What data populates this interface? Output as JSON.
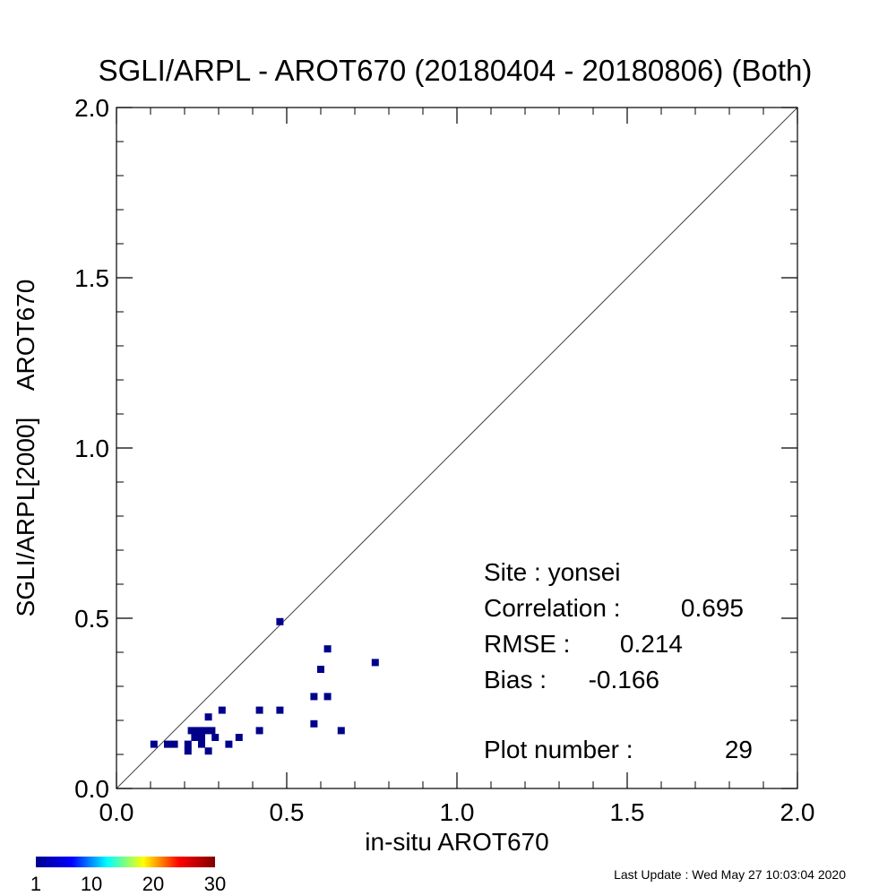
{
  "chart_data": {
    "type": "scatter",
    "title": "SGLI/ARPL - AROT670 (20180404 - 20180806) (Both)",
    "xlabel": "in-situ AROT670",
    "ylabel": "SGLI/ARPL[2000]    AROT670",
    "xlim": [
      0.0,
      2.0
    ],
    "ylim": [
      0.0,
      2.0
    ],
    "xticks": [
      "0.0",
      "0.5",
      "1.0",
      "1.5",
      "2.0"
    ],
    "yticks": [
      "0.0",
      "0.5",
      "1.0",
      "1.5",
      "2.0"
    ],
    "xtick_values": [
      0.0,
      0.5,
      1.0,
      1.5,
      2.0
    ],
    "ytick_values": [
      0.0,
      0.5,
      1.0,
      1.5,
      2.0
    ],
    "grid": false,
    "one_to_one_line": true,
    "point_color": "#00008b",
    "points": [
      {
        "x": 0.11,
        "y": 0.13
      },
      {
        "x": 0.15,
        "y": 0.13
      },
      {
        "x": 0.17,
        "y": 0.13
      },
      {
        "x": 0.21,
        "y": 0.11
      },
      {
        "x": 0.21,
        "y": 0.13
      },
      {
        "x": 0.22,
        "y": 0.17
      },
      {
        "x": 0.23,
        "y": 0.15
      },
      {
        "x": 0.24,
        "y": 0.17
      },
      {
        "x": 0.25,
        "y": 0.13
      },
      {
        "x": 0.26,
        "y": 0.17
      },
      {
        "x": 0.27,
        "y": 0.11
      },
      {
        "x": 0.27,
        "y": 0.21
      },
      {
        "x": 0.28,
        "y": 0.17
      },
      {
        "x": 0.29,
        "y": 0.15
      },
      {
        "x": 0.31,
        "y": 0.23
      },
      {
        "x": 0.33,
        "y": 0.13
      },
      {
        "x": 0.36,
        "y": 0.15
      },
      {
        "x": 0.42,
        "y": 0.17
      },
      {
        "x": 0.42,
        "y": 0.23
      },
      {
        "x": 0.48,
        "y": 0.23
      },
      {
        "x": 0.48,
        "y": 0.49
      },
      {
        "x": 0.58,
        "y": 0.19
      },
      {
        "x": 0.58,
        "y": 0.27
      },
      {
        "x": 0.6,
        "y": 0.35
      },
      {
        "x": 0.62,
        "y": 0.27
      },
      {
        "x": 0.62,
        "y": 0.41
      },
      {
        "x": 0.66,
        "y": 0.17
      },
      {
        "x": 0.76,
        "y": 0.37
      },
      {
        "x": 0.25,
        "y": 0.15
      }
    ],
    "stats": {
      "site": "Site : yonsei",
      "correlation_label": "Correlation :",
      "correlation_value": "0.695",
      "rmse_label": "RMSE :",
      "rmse_value": "0.214",
      "bias_label": "Bias :",
      "bias_value": "-0.166",
      "plot_number_label": "Plot number :",
      "plot_number_value": "29"
    },
    "colorbar": {
      "labels": [
        "1",
        "10",
        "20",
        "30"
      ],
      "label_values": [
        1,
        10,
        20,
        30
      ],
      "range": [
        1,
        30
      ],
      "colormap": [
        "#00008f",
        "#0000ff",
        "#00ffff",
        "#ffff00",
        "#ff0000",
        "#800000"
      ]
    }
  },
  "footer": {
    "last_update": "Last Update : Wed May 27 10:03:04 2020"
  }
}
